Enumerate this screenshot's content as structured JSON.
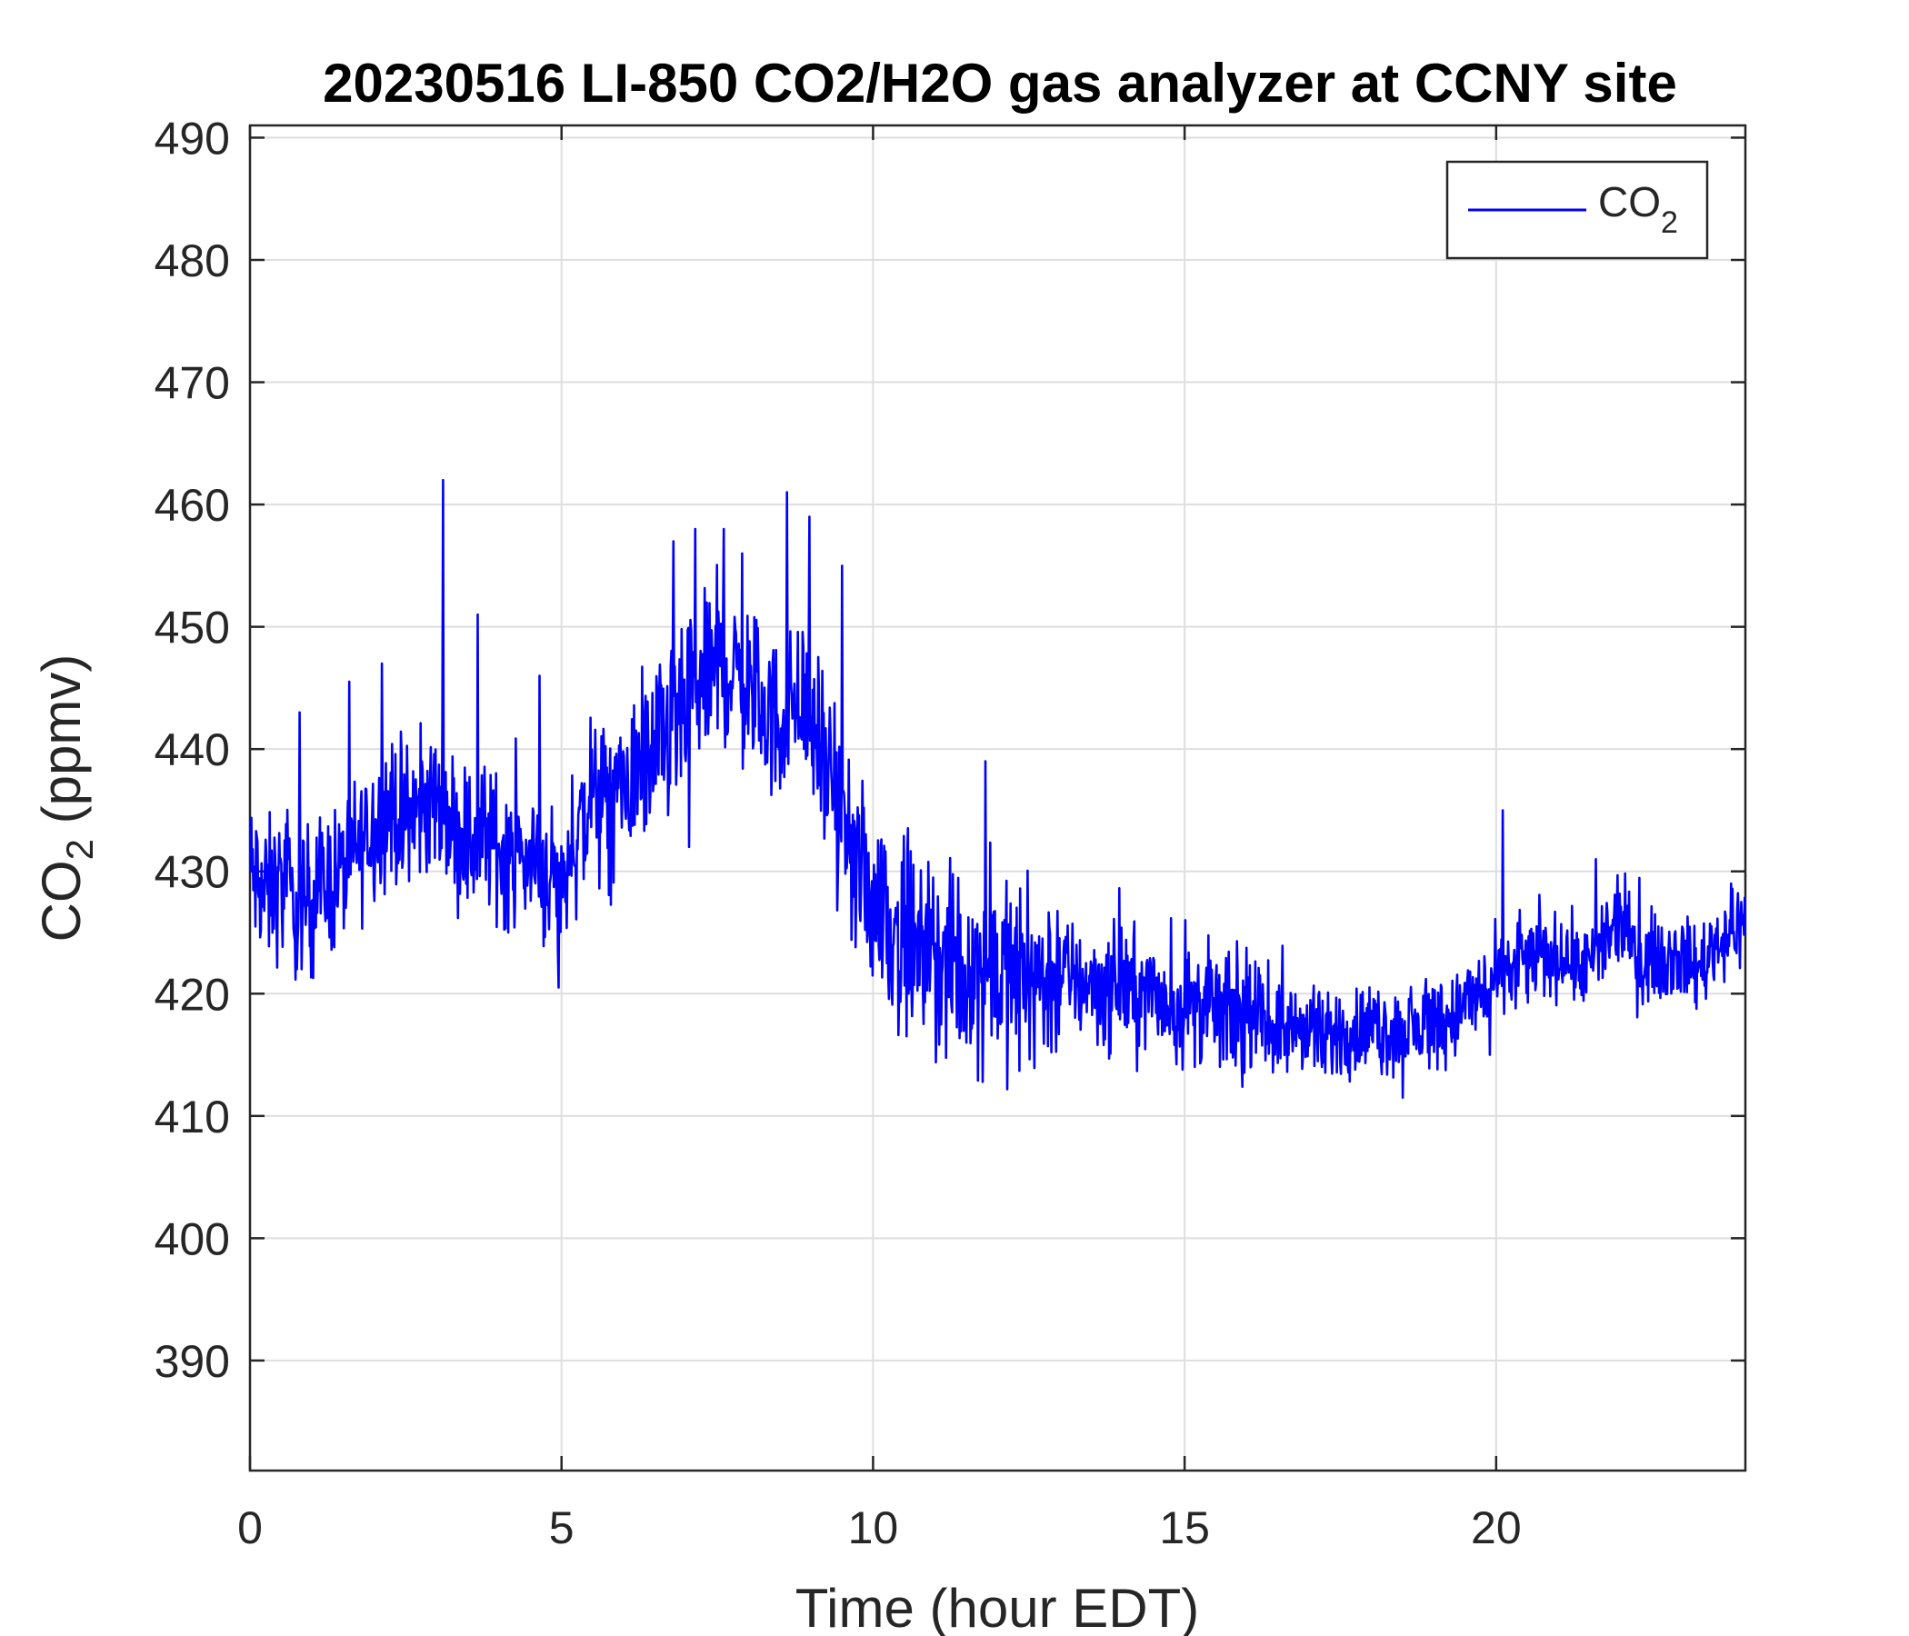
{
  "chart_data": {
    "type": "line",
    "title": "20230516 LI-850 CO2/H2O gas analyzer at CCNY site",
    "xlabel": "Time (hour EDT)",
    "ylabel": {
      "base": "CO",
      "sub": "2",
      "rest": " (ppmv)"
    },
    "xlim": [
      0,
      24
    ],
    "ylim": [
      381,
      491
    ],
    "xticks": [
      0,
      5,
      10,
      15,
      20
    ],
    "yticks": [
      390,
      400,
      410,
      420,
      430,
      440,
      450,
      460,
      470,
      480,
      490
    ],
    "grid": true,
    "legend_position": "top-right",
    "series": [
      {
        "name": {
          "base": "CO",
          "sub": "2"
        },
        "color": "#0000ff",
        "x": [
          0,
          0.25,
          0.5,
          0.75,
          1,
          1.25,
          1.5,
          1.75,
          2,
          2.25,
          2.5,
          2.75,
          3,
          3.25,
          3.5,
          3.75,
          4,
          4.25,
          4.5,
          4.75,
          5,
          5.25,
          5.5,
          5.75,
          6,
          6.25,
          6.5,
          6.75,
          7,
          7.25,
          7.5,
          7.75,
          8,
          8.25,
          8.5,
          8.75,
          9,
          9.25,
          9.5,
          9.75,
          10,
          10.25,
          10.5,
          10.75,
          11,
          11.25,
          11.5,
          11.75,
          12,
          12.25,
          12.5,
          12.75,
          13,
          13.25,
          13.5,
          13.75,
          14,
          14.25,
          14.5,
          14.75,
          15,
          15.25,
          15.5,
          15.75,
          16,
          16.25,
          16.5,
          16.75,
          17,
          17.25,
          17.5,
          17.75,
          18,
          18.25,
          18.5,
          18.75,
          19,
          19.25,
          19.5,
          19.75,
          20,
          20.25,
          20.5,
          20.75,
          21,
          21.25,
          21.5,
          21.75,
          22,
          22.25,
          22.5,
          22.75,
          23,
          23.25,
          23.5,
          23.75,
          24
        ],
        "y": [
          430,
          428,
          429,
          427,
          428,
          429,
          430,
          432,
          434,
          435,
          434,
          435,
          436,
          434,
          432,
          433,
          432,
          431,
          431,
          430,
          429,
          433,
          436,
          435,
          437,
          438,
          440,
          441,
          443,
          445,
          447,
          446,
          445,
          443,
          442,
          444,
          443,
          438,
          433,
          430,
          428,
          426,
          424,
          423,
          423,
          422,
          422,
          422,
          422,
          421,
          422,
          421,
          422,
          421,
          421,
          420,
          421,
          420,
          420,
          419,
          419,
          419,
          419,
          418,
          418,
          418,
          417,
          417,
          417,
          416,
          417,
          417,
          417,
          417,
          417,
          417,
          418,
          418,
          419,
          420,
          421,
          422,
          423,
          423,
          423,
          423,
          422,
          424,
          426,
          423,
          423,
          423,
          423,
          422,
          424,
          425,
          426
        ]
      }
    ],
    "spikes": [
      {
        "x": 0.8,
        "y": 443
      },
      {
        "x": 2.12,
        "y": 447
      },
      {
        "x": 3.1,
        "y": 462
      },
      {
        "x": 3.65,
        "y": 451
      },
      {
        "x": 4.65,
        "y": 446
      },
      {
        "x": 6.8,
        "y": 457
      },
      {
        "x": 7.15,
        "y": 458
      },
      {
        "x": 7.6,
        "y": 458
      },
      {
        "x": 7.9,
        "y": 456
      },
      {
        "x": 8.62,
        "y": 461
      },
      {
        "x": 8.98,
        "y": 459
      },
      {
        "x": 9.5,
        "y": 455
      },
      {
        "x": 11.8,
        "y": 439
      },
      {
        "x": 19.9,
        "y": 415
      },
      {
        "x": 20.1,
        "y": 435
      },
      {
        "x": 21.6,
        "y": 431
      }
    ],
    "dips": [
      {
        "x": 0.75,
        "y": 422
      },
      {
        "x": 4.95,
        "y": 420.5
      },
      {
        "x": 7.05,
        "y": 432
      },
      {
        "x": 11.5,
        "y": 416
      },
      {
        "x": 18.5,
        "y": 411.5
      },
      {
        "x": 17.2,
        "y": 414
      }
    ]
  }
}
